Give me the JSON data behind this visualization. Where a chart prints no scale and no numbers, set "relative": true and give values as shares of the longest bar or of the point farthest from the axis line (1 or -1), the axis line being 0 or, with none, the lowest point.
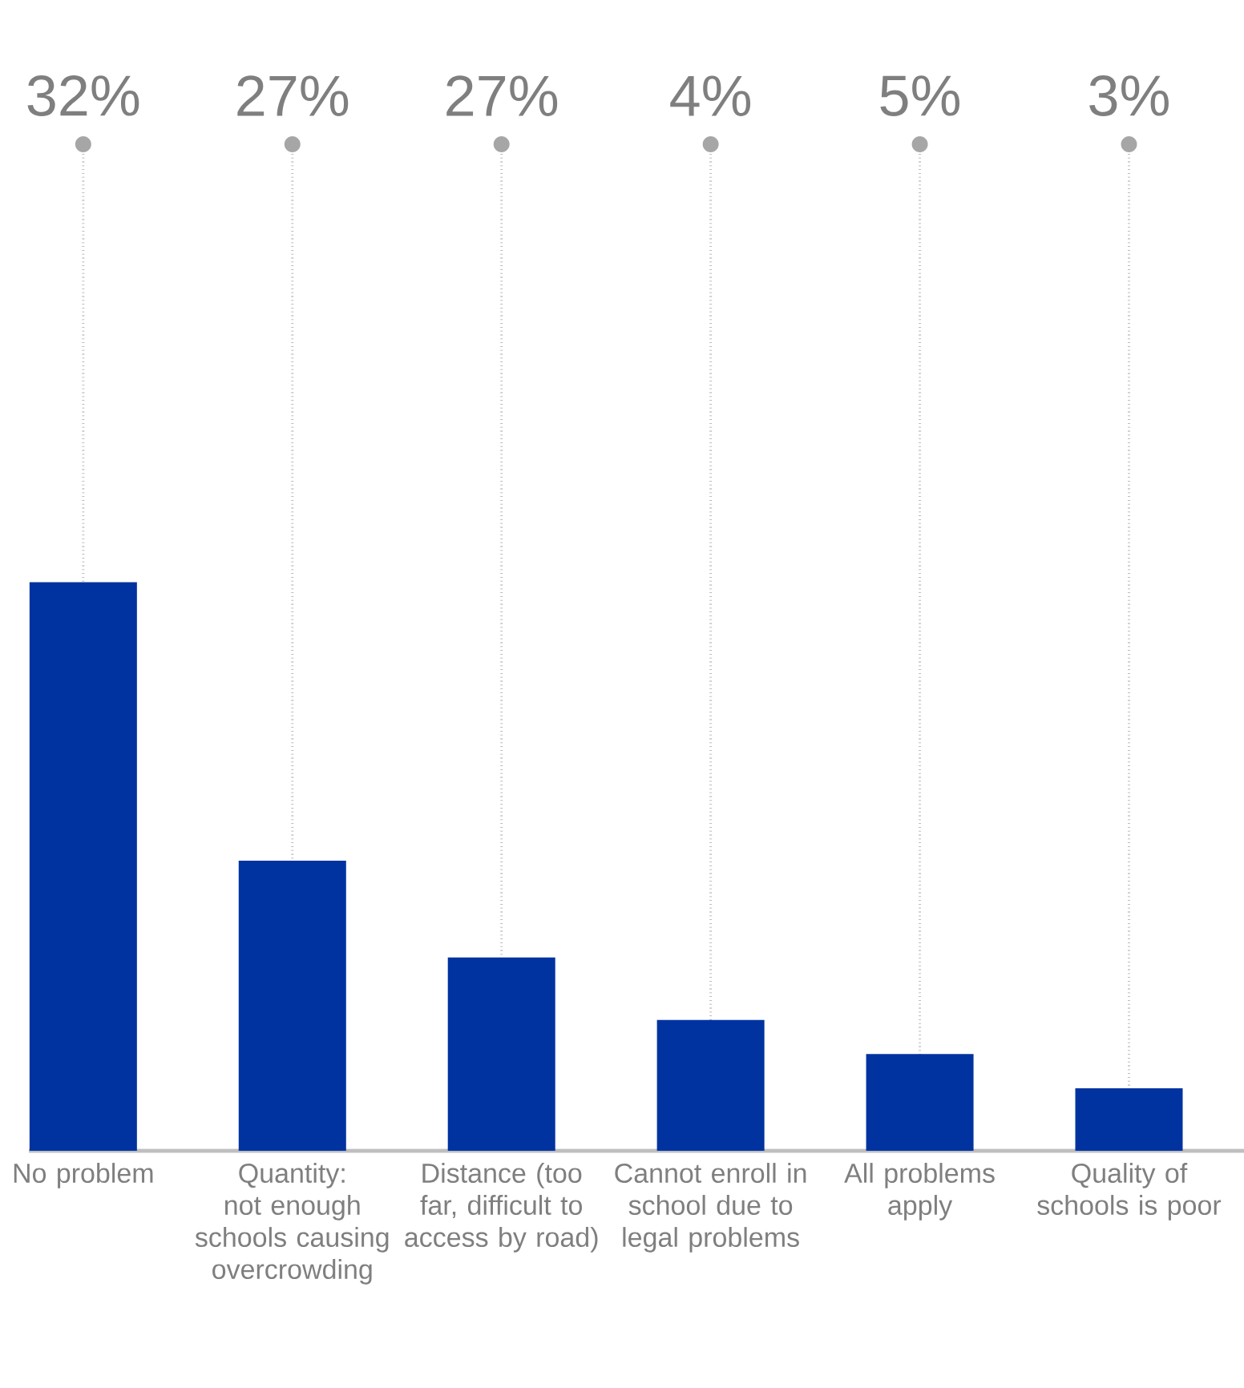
{
  "chart_data": {
    "type": "bar",
    "relative": true,
    "categories": [
      "No problem",
      "Quantity: not enough schools causing overcrowding",
      "Distance (too far, difficult to access by road)",
      "Cannot enroll in school due to legal problems",
      "All problems apply",
      "Quality of schools is poor"
    ],
    "values": [
      1,
      0.51,
      0.34,
      0.23,
      0.17,
      0.11
    ],
    "color": "#0033a0",
    "grid": "x",
    "annotations": [
      "32%",
      "27%",
      "27%",
      "4%",
      "5%",
      "3%"
    ]
  }
}
